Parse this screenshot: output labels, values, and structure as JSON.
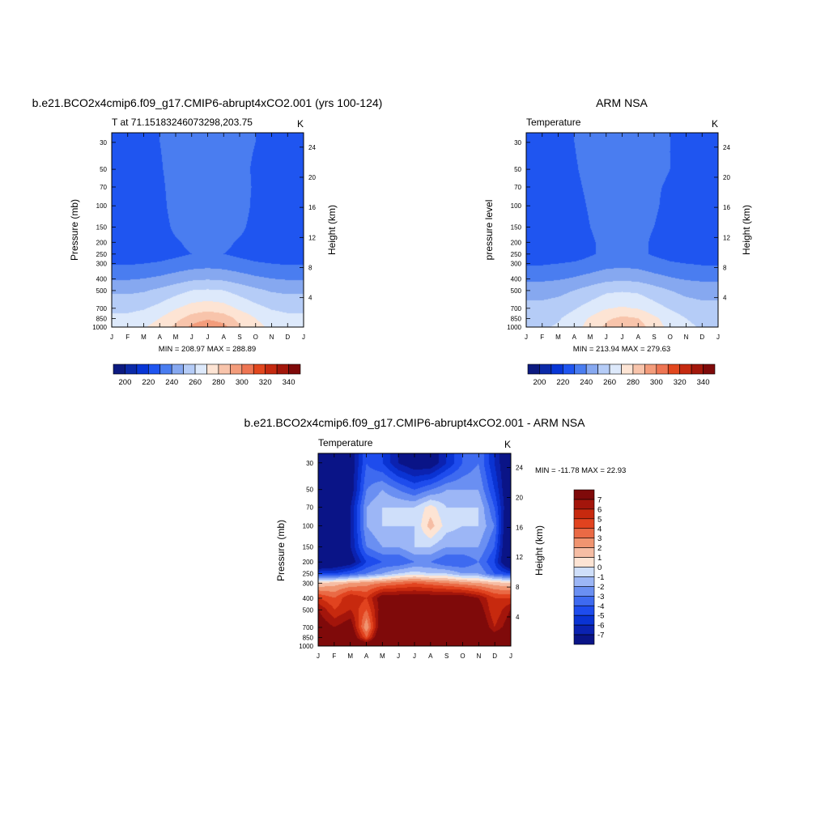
{
  "panel_model": {
    "title": "b.e21.BCO2x4cmip6.f09_g17.CMIP6-abrupt4xCO2.001 (yrs 100-124)",
    "subtitle_left": "T at 71.15183246073298,203.75",
    "subtitle_right": "K",
    "stats": "MIN = 208.97 MAX = 288.89"
  },
  "panel_obs": {
    "title": "ARM NSA",
    "subtitle_left": "Temperature",
    "subtitle_right": "K",
    "stats": "MIN = 213.94 MAX = 279.63"
  },
  "panel_diff": {
    "title": "b.e21.BCO2x4cmip6.f09_g17.CMIP6-abrupt4xCO2.001 - ARM NSA",
    "subtitle_left": "Temperature",
    "subtitle_right": "K",
    "stats": "MIN = -11.78 MAX =  22.93"
  },
  "colors": {
    "abs_palette": [
      "#0c1a80",
      "#0b2aa8",
      "#0836d6",
      "#1f55f0",
      "#4a7df0",
      "#86a8f0",
      "#b5ccf7",
      "#dde9fb",
      "#fde4d4",
      "#f8c4ab",
      "#f39c7b",
      "#ee7553",
      "#e2471e",
      "#c52a10",
      "#a3170b",
      "#7f0a0a"
    ],
    "diff_palette": [
      "#0a1487",
      "#0b22b0",
      "#0a33d3",
      "#1e4ced",
      "#3e6af0",
      "#6a8ff2",
      "#9cb6f6",
      "#cfdffa",
      "#fde4d4",
      "#f6bda4",
      "#f09470",
      "#ea6a45",
      "#e1431f",
      "#c7290e",
      "#a3150b",
      "#7f0a0a"
    ]
  },
  "chart_data": [
    {
      "type": "heatmap",
      "panel": "panel_model",
      "xlabel": "",
      "ylabel": "Pressure (mb)",
      "y2label": "Height (km)",
      "x_ticks": [
        "J",
        "F",
        "M",
        "A",
        "M",
        "J",
        "J",
        "A",
        "S",
        "O",
        "N",
        "D",
        "J"
      ],
      "y_ticks_pressure": [
        30,
        50,
        70,
        100,
        150,
        200,
        250,
        300,
        400,
        500,
        700,
        850,
        1000
      ],
      "y2_ticks_km": [
        4,
        8,
        12,
        16,
        20,
        24
      ],
      "colorbar": {
        "orientation": "horizontal",
        "labels": [
          200,
          220,
          240,
          260,
          280,
          300,
          320,
          340
        ]
      },
      "pressure_levels": [
        30,
        50,
        70,
        100,
        150,
        200,
        250,
        300,
        400,
        500,
        700,
        850,
        1000
      ],
      "months": [
        "J",
        "F",
        "M",
        "A",
        "M",
        "J",
        "J",
        "A",
        "S",
        "O",
        "N",
        "D",
        "J"
      ],
      "values": [
        [
          218,
          218,
          218,
          220,
          224,
          226,
          225,
          224,
          222,
          220,
          218,
          214,
          218
        ],
        [
          217,
          217,
          217,
          219,
          224,
          226,
          226,
          225,
          222,
          219,
          217,
          216,
          217
        ],
        [
          216,
          216,
          216,
          218,
          224,
          227,
          227,
          226,
          223,
          219,
          216,
          216,
          216
        ],
        [
          215,
          215,
          215,
          217,
          224,
          228,
          228,
          227,
          224,
          218,
          215,
          215,
          215
        ],
        [
          214,
          214,
          214,
          216,
          222,
          226,
          227,
          226,
          222,
          217,
          214,
          214,
          214
        ],
        [
          213,
          213,
          214,
          215,
          219,
          222,
          223,
          222,
          219,
          216,
          214,
          213,
          213
        ],
        [
          214,
          214,
          215,
          216,
          218,
          220,
          221,
          220,
          218,
          216,
          215,
          214,
          214
        ],
        [
          219,
          219,
          220,
          221,
          223,
          225,
          226,
          225,
          223,
          221,
          220,
          219,
          219
        ],
        [
          229,
          229,
          230,
          232,
          235,
          238,
          239,
          238,
          235,
          232,
          230,
          229,
          229
        ],
        [
          238,
          238,
          239,
          242,
          246,
          250,
          251,
          250,
          246,
          242,
          239,
          238,
          238
        ],
        [
          247,
          247,
          249,
          253,
          259,
          264,
          266,
          264,
          258,
          253,
          249,
          247,
          247
        ],
        [
          253,
          253,
          255,
          260,
          267,
          274,
          278,
          275,
          267,
          260,
          255,
          253,
          253
        ],
        [
          257,
          257,
          259,
          264,
          272,
          282,
          289,
          283,
          271,
          263,
          258,
          257,
          257
        ]
      ]
    },
    {
      "type": "heatmap",
      "panel": "panel_obs",
      "xlabel": "",
      "ylabel": "pressure level",
      "y2label": "Height (km)",
      "x_ticks": [
        "J",
        "F",
        "M",
        "A",
        "M",
        "J",
        "J",
        "A",
        "S",
        "O",
        "N",
        "D",
        "J"
      ],
      "y_ticks_pressure": [
        30,
        50,
        70,
        100,
        150,
        200,
        250,
        300,
        400,
        500,
        700,
        850,
        1000
      ],
      "y2_ticks_km": [
        4,
        8,
        12,
        16,
        20,
        24
      ],
      "colorbar": {
        "orientation": "horizontal",
        "labels": [
          200,
          220,
          240,
          260,
          280,
          300,
          320,
          340
        ]
      },
      "pressure_levels": [
        30,
        50,
        70,
        100,
        150,
        200,
        250,
        300,
        400,
        500,
        700,
        850,
        1000
      ],
      "months": [
        "J",
        "F",
        "M",
        "A",
        "M",
        "J",
        "J",
        "A",
        "S",
        "O",
        "N",
        "D",
        "J"
      ],
      "values": [
        [
          218,
          218,
          218,
          220,
          224,
          226,
          226,
          224,
          222,
          220,
          218,
          216,
          218
        ],
        [
          217,
          217,
          217,
          219,
          223,
          225,
          225,
          224,
          222,
          220,
          217,
          216,
          217
        ],
        [
          216,
          216,
          216,
          218,
          222,
          225,
          225,
          224,
          221,
          219,
          216,
          216,
          216
        ],
        [
          215,
          215,
          215,
          217,
          221,
          224,
          224,
          223,
          221,
          218,
          215,
          215,
          215
        ],
        [
          214,
          214,
          215,
          216,
          220,
          223,
          223,
          222,
          220,
          217,
          215,
          214,
          214
        ],
        [
          214,
          214,
          214,
          215,
          219,
          222,
          223,
          222,
          219,
          216,
          214,
          214,
          214
        ],
        [
          215,
          215,
          215,
          216,
          219,
          222,
          223,
          222,
          219,
          217,
          215,
          215,
          215
        ],
        [
          219,
          219,
          220,
          221,
          223,
          226,
          227,
          226,
          223,
          221,
          220,
          219,
          219
        ],
        [
          228,
          228,
          229,
          231,
          234,
          237,
          238,
          237,
          234,
          231,
          229,
          228,
          228
        ],
        [
          236,
          236,
          237,
          240,
          244,
          248,
          249,
          248,
          244,
          240,
          237,
          236,
          236
        ],
        [
          243,
          243,
          245,
          249,
          254,
          259,
          261,
          259,
          254,
          249,
          245,
          243,
          243
        ],
        [
          247,
          247,
          249,
          254,
          261,
          268,
          272,
          270,
          262,
          255,
          250,
          247,
          247
        ],
        [
          249,
          249,
          251,
          256,
          264,
          272,
          279,
          275,
          265,
          257,
          252,
          249,
          249
        ]
      ]
    },
    {
      "type": "heatmap",
      "panel": "panel_diff",
      "xlabel": "",
      "ylabel": "Pressure (mb)",
      "y2label": "Height (km)",
      "x_ticks": [
        "J",
        "F",
        "M",
        "A",
        "M",
        "J",
        "J",
        "A",
        "S",
        "O",
        "N",
        "D",
        "J"
      ],
      "y_ticks_pressure": [
        30,
        50,
        70,
        100,
        150,
        200,
        250,
        300,
        400,
        500,
        700,
        850,
        1000
      ],
      "y2_ticks_km": [
        4,
        8,
        12,
        16,
        20,
        24
      ],
      "colorbar": {
        "orientation": "vertical",
        "labels": [
          7,
          6,
          5,
          4,
          3,
          2,
          1,
          0,
          -1,
          -2,
          -3,
          -4,
          -5,
          -6,
          -7
        ]
      },
      "pressure_levels": [
        30,
        50,
        70,
        100,
        150,
        200,
        250,
        300,
        400,
        500,
        700,
        850,
        1000
      ],
      "months": [
        "J",
        "F",
        "M",
        "A",
        "M",
        "J",
        "J",
        "A",
        "S",
        "O",
        "N",
        "D",
        "J"
      ],
      "values": [
        [
          -9,
          -9,
          -8,
          -4,
          -5,
          -7,
          -8,
          -8,
          -6,
          -4,
          -3,
          -6,
          -9
        ],
        [
          -9,
          -9,
          -8,
          -3,
          -2,
          -3,
          -4,
          -3,
          -2,
          -2,
          -2,
          -5,
          -9
        ],
        [
          -9,
          -9,
          -7,
          -2,
          -1,
          -1,
          -1,
          0.5,
          -1,
          -1,
          -1,
          -4,
          -9
        ],
        [
          -10,
          -9,
          -7,
          -2,
          -1,
          -1,
          -1,
          1.5,
          -0.5,
          -1,
          -1,
          -3,
          -10
        ],
        [
          -10,
          -9,
          -7,
          -3,
          -2,
          -2,
          -1,
          -1,
          -2,
          -2,
          -2,
          -4,
          -10
        ],
        [
          -10,
          -9,
          -8,
          -5,
          -4,
          -4,
          -3,
          -3,
          -4,
          -4,
          -3,
          -5,
          -10
        ],
        [
          -5,
          -5,
          -4,
          -3,
          -2,
          -1,
          -0.5,
          -1,
          -1,
          -2,
          -2,
          -4,
          -5
        ],
        [
          1,
          1.5,
          2,
          2.5,
          3,
          3.5,
          4,
          3.5,
          3,
          2.5,
          2,
          1.5,
          1
        ],
        [
          5,
          4,
          6,
          5,
          8,
          8,
          8,
          8,
          8,
          8,
          7,
          5,
          5
        ],
        [
          7,
          5,
          6,
          4,
          8,
          8,
          9,
          9,
          9,
          9,
          8,
          5,
          7
        ],
        [
          8,
          7,
          8,
          2,
          9,
          9,
          10,
          10,
          10,
          10,
          9,
          6,
          8
        ],
        [
          9,
          9,
          9,
          4,
          10,
          10,
          10,
          8,
          9,
          10,
          10,
          8,
          9
        ],
        [
          10,
          10,
          10,
          9,
          10,
          10,
          10,
          10,
          10,
          10,
          10,
          10,
          10
        ]
      ]
    }
  ]
}
